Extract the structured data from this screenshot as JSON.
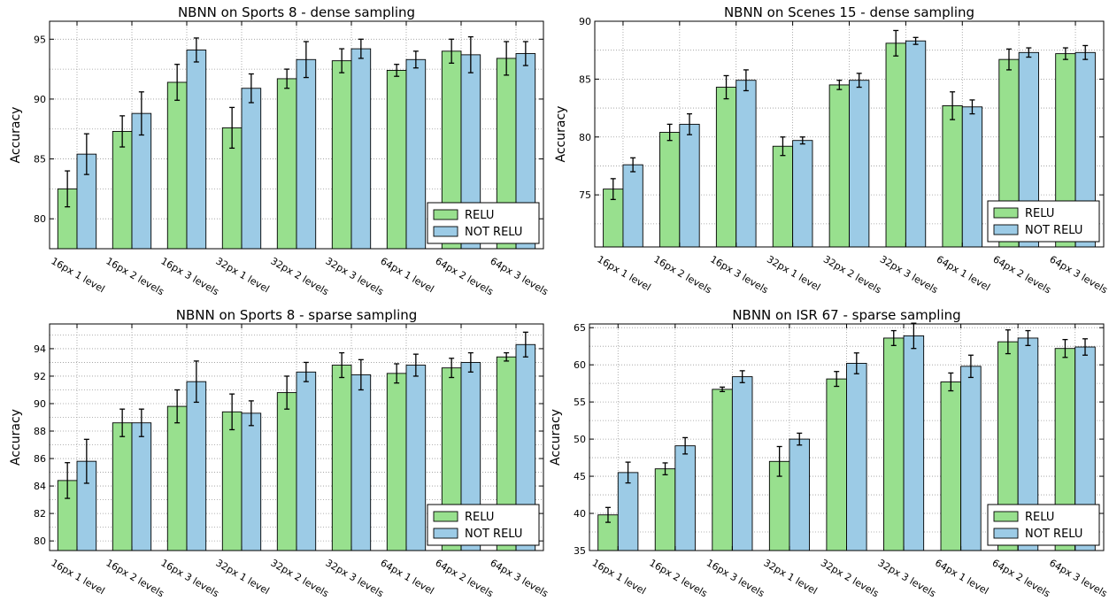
{
  "chart_data": [
    {
      "type": "bar",
      "title": "NBNN on Sports 8 - dense sampling",
      "xlabel": "",
      "ylabel": "Accuracy",
      "ylim": [
        77.5,
        96.5
      ],
      "yticks": [
        80,
        85,
        90,
        95
      ],
      "grid": true,
      "legend_placement": "lower-right",
      "categories": [
        "16px 1 level",
        "16px 2 levels",
        "16px 3 levels",
        "32px 1 level",
        "32px 2 levels",
        "32px 3 levels",
        "64px 1 level",
        "64px 2 levels",
        "64px 3 levels"
      ],
      "series": [
        {
          "name": "RELU",
          "color": "#98e08e",
          "values": [
            82.5,
            87.3,
            91.4,
            87.6,
            91.7,
            93.2,
            92.4,
            94.0,
            93.4
          ],
          "errors": [
            1.5,
            1.3,
            1.5,
            1.7,
            0.8,
            1.0,
            0.5,
            1.0,
            1.4
          ]
        },
        {
          "name": "NOT RELU",
          "color": "#9ccbe6",
          "values": [
            85.4,
            88.8,
            94.1,
            90.9,
            93.3,
            94.2,
            93.3,
            93.7,
            93.8
          ],
          "errors": [
            1.7,
            1.8,
            1.0,
            1.2,
            1.5,
            0.8,
            0.7,
            1.5,
            1.0
          ]
        }
      ]
    },
    {
      "type": "bar",
      "title": "NBNN on Scenes 15 - dense sampling",
      "xlabel": "",
      "ylabel": "Accuracy",
      "ylim": [
        70.5,
        90
      ],
      "yticks": [
        75,
        80,
        85,
        90
      ],
      "grid": true,
      "legend_placement": "lower-right",
      "categories": [
        "16px 1 level",
        "16px 2 levels",
        "16px 3 levels",
        "32px 1 level",
        "32px 2 levels",
        "32px 3 levels",
        "64px 1 level",
        "64px 2 levels",
        "64px 3 levels"
      ],
      "series": [
        {
          "name": "RELU",
          "color": "#98e08e",
          "values": [
            75.5,
            80.4,
            84.3,
            79.2,
            84.5,
            88.1,
            82.7,
            86.7,
            87.2
          ],
          "errors": [
            0.9,
            0.7,
            1.0,
            0.8,
            0.4,
            1.1,
            1.2,
            0.9,
            0.5
          ]
        },
        {
          "name": "NOT RELU",
          "color": "#9ccbe6",
          "values": [
            77.6,
            81.1,
            84.9,
            79.7,
            84.9,
            88.3,
            82.6,
            87.3,
            87.3
          ],
          "errors": [
            0.6,
            0.9,
            0.9,
            0.3,
            0.6,
            0.3,
            0.6,
            0.4,
            0.6
          ]
        }
      ]
    },
    {
      "type": "bar",
      "title": "NBNN on Sports 8 - sparse sampling",
      "xlabel": "",
      "ylabel": "Accuracy",
      "ylim": [
        79.3,
        95.8
      ],
      "yticks": [
        80,
        82,
        84,
        86,
        88,
        90,
        92,
        94
      ],
      "grid": true,
      "legend_placement": "lower-right",
      "categories": [
        "16px 1 level",
        "16px 2 levels",
        "16px 3 levels",
        "32px 1 level",
        "32px 2 levels",
        "32px 3 levels",
        "64px 1 level",
        "64px 2 levels",
        "64px 3 levels"
      ],
      "series": [
        {
          "name": "RELU",
          "color": "#98e08e",
          "values": [
            84.4,
            88.6,
            89.8,
            89.4,
            90.8,
            92.8,
            92.2,
            92.6,
            93.4
          ],
          "errors": [
            1.3,
            1.0,
            1.2,
            1.3,
            1.2,
            0.9,
            0.7,
            0.7,
            0.3
          ]
        },
        {
          "name": "NOT RELU",
          "color": "#9ccbe6",
          "values": [
            85.8,
            88.6,
            91.6,
            89.3,
            92.3,
            92.1,
            92.8,
            93.0,
            94.3
          ],
          "errors": [
            1.6,
            1.0,
            1.5,
            0.9,
            0.7,
            1.1,
            0.8,
            0.7,
            0.9
          ]
        }
      ]
    },
    {
      "type": "bar",
      "title": "NBNN on ISR 67 - sparse sampling",
      "xlabel": "",
      "ylabel": "Accuracy",
      "ylim": [
        35,
        65.5
      ],
      "yticks": [
        35,
        40,
        45,
        50,
        55,
        60,
        65
      ],
      "grid": true,
      "legend_placement": "lower-right",
      "categories": [
        "16px 1 level",
        "16px 2 levels",
        "16px 3 levels",
        "32px 1 level",
        "32px 2 levels",
        "32px 3 levels",
        "64px 1 level",
        "64px 2 levels",
        "64px 3 levels"
      ],
      "series": [
        {
          "name": "RELU",
          "color": "#98e08e",
          "values": [
            39.8,
            46.0,
            56.7,
            47.0,
            58.1,
            63.6,
            57.7,
            63.1,
            62.2
          ],
          "errors": [
            1.0,
            0.8,
            0.3,
            2.0,
            1.0,
            1.0,
            1.2,
            1.6,
            1.2
          ]
        },
        {
          "name": "NOT RELU",
          "color": "#9ccbe6",
          "values": [
            45.5,
            49.1,
            58.4,
            50.0,
            60.2,
            63.9,
            59.8,
            63.6,
            62.4
          ],
          "errors": [
            1.4,
            1.1,
            0.8,
            0.8,
            1.4,
            1.7,
            1.5,
            1.0,
            1.1
          ]
        }
      ]
    }
  ]
}
